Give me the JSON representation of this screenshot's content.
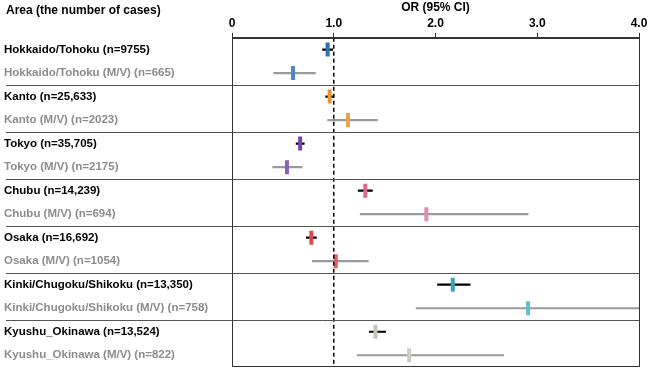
{
  "chart_data": {
    "type": "forest",
    "orientation": "horizontal",
    "x_label": "OR (95% CI)",
    "y_label": "Area (the number of cases)",
    "categories": [
      "Hokkaido/Tohoku (n=9755)",
      "Hokkaido/Tohoku (M/V) (n=665)",
      "Kanto (n=25,633)",
      "Kanto (M/V) (n=2023)",
      "Tokyo (n=35,705)",
      "Tokyo (M/V) (n=2175)",
      "Chubu (n=14,239)",
      "Chubu (M/V) (n=694)",
      "Osaka (n=16,692)",
      "Osaka (M/V) (n=1054)",
      "Kinki/Chugoku/Shikoku (n=13,350)",
      "Kinki/Chugoku/Shikoku (M/V) (n=758)",
      "Kyushu_Okinawa (n=13,524)",
      "Kyushu_Okinawa (M/V) (n=822)"
    ],
    "values": [
      0.94,
      0.6,
      0.96,
      1.14,
      0.67,
      0.54,
      1.31,
      1.91,
      0.78,
      1.02,
      2.17,
      2.91,
      1.41,
      1.74
    ],
    "ci_lower": [
      0.89,
      0.41,
      0.92,
      0.94,
      0.63,
      0.4,
      1.24,
      1.26,
      0.73,
      0.79,
      2.02,
      1.81,
      1.35,
      1.23
    ],
    "ci_upper": [
      0.99,
      0.82,
      1.0,
      1.43,
      0.71,
      0.69,
      1.38,
      2.91,
      0.83,
      1.34,
      2.34,
      4.1,
      1.51,
      2.67
    ],
    "colors": [
      "#2f6fb0",
      "#4a86c8",
      "#e8982e",
      "#f0a04b",
      "#7b3f9e",
      "#8b5fb5",
      "#d9688a",
      "#e58bb0",
      "#d84a4a",
      "#e06060",
      "#3aa5b5",
      "#5cc1cc",
      "#c8c4b8",
      "#d0ccc0"
    ],
    "ci_colors": [
      "#000000",
      "#9a9a9a",
      "#000000",
      "#9a9a9a",
      "#000000",
      "#9a9a9a",
      "#000000",
      "#9a9a9a",
      "#000000",
      "#9a9a9a",
      "#000000",
      "#9a9a9a",
      "#000000",
      "#9a9a9a"
    ],
    "label_colors": [
      "#000000",
      "#8c8c8c",
      "#000000",
      "#8c8c8c",
      "#000000",
      "#8c8c8c",
      "#000000",
      "#8c8c8c",
      "#000000",
      "#8c8c8c",
      "#000000",
      "#8c8c8c",
      "#000000",
      "#8c8c8c"
    ],
    "reference_value": 1,
    "xlim": [
      0,
      4
    ],
    "xticks": [
      0,
      {
        "value": 1,
        "label": "1.0"
      },
      {
        "value": 2,
        "label": "2.0"
      },
      {
        "value": 3,
        "label": "3.0"
      },
      {
        "value": 4,
        "label": "4.0"
      }
    ],
    "grid": false,
    "legend": "none"
  }
}
